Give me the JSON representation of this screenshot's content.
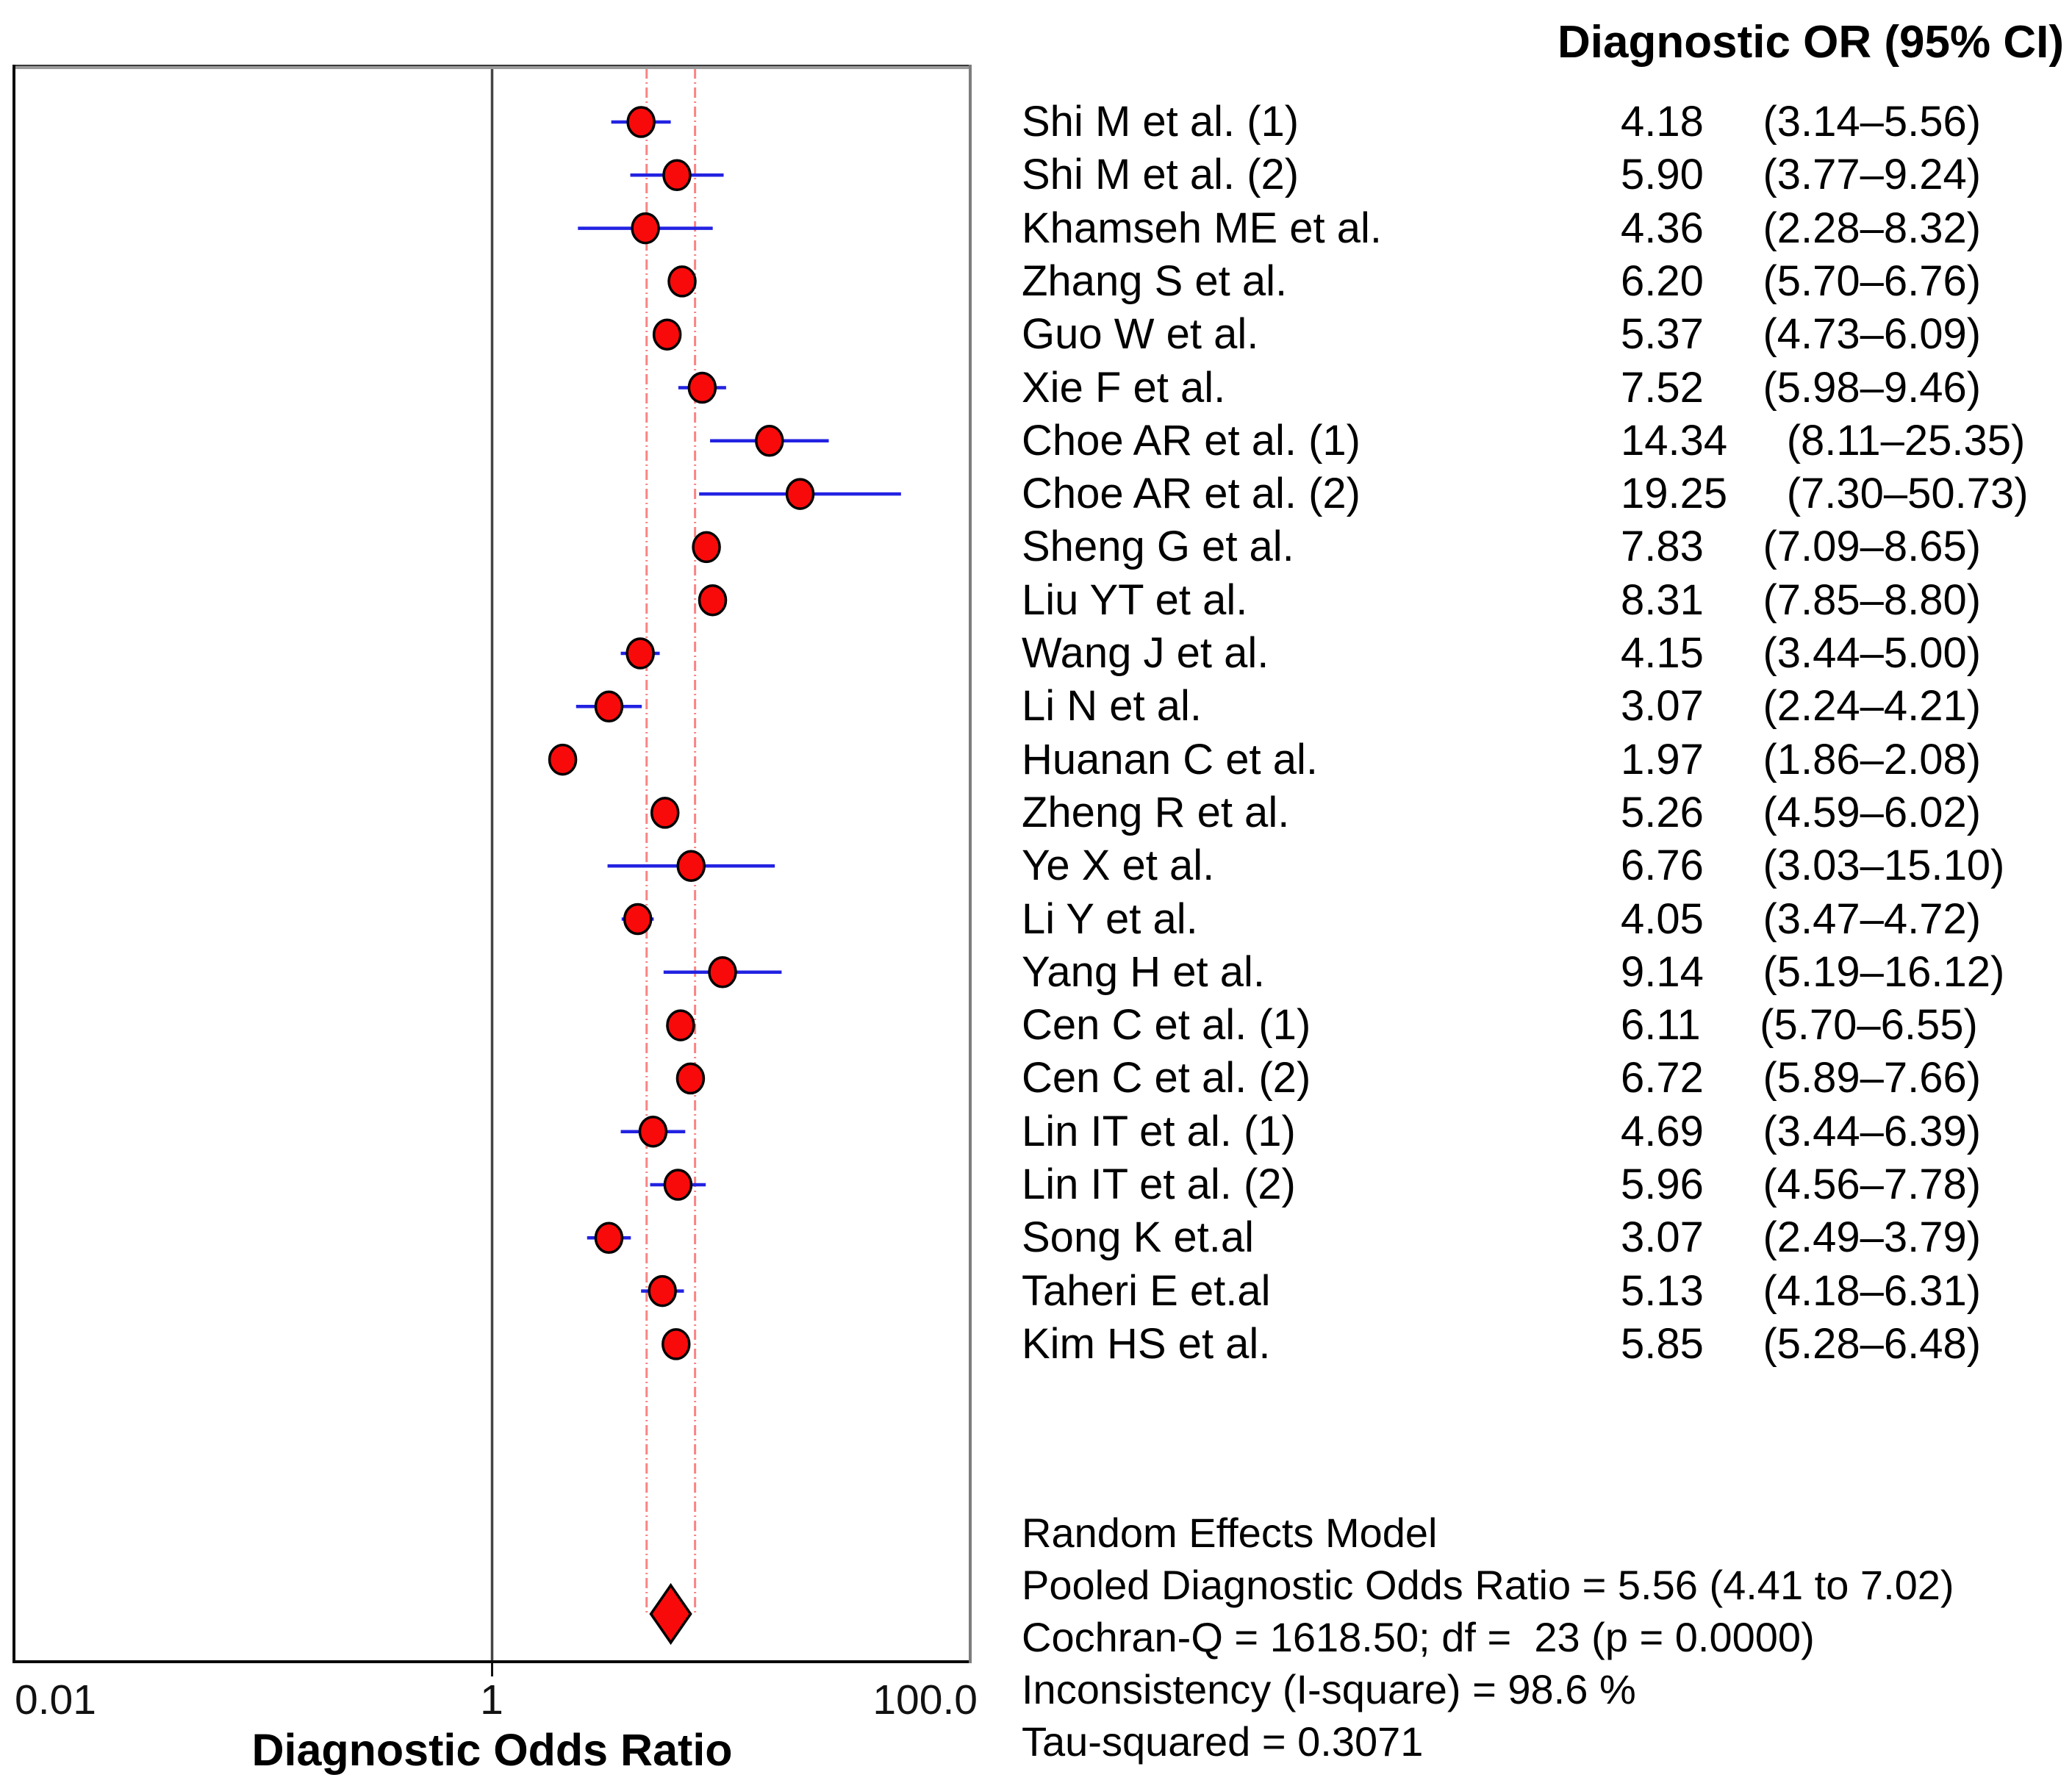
{
  "header": {
    "or_ci_label": "Diagnostic OR (95% CI)"
  },
  "chart_data": {
    "type": "forest",
    "x_scale": "log",
    "xlim": [
      0.01,
      100
    ],
    "x_ticks": [
      "0.01",
      "1",
      "100.0"
    ],
    "xlabel": "Diagnostic Odds Ratio",
    "null_line_value": 1,
    "grid": false,
    "studies": [
      {
        "label": "Shi M et al. (1)",
        "or": 4.18,
        "ci_low": 3.14,
        "ci_high": 5.56,
        "or_text": "4.18",
        "ci_text": "(3.14–5.56)"
      },
      {
        "label": "Shi M et al. (2)",
        "or": 5.9,
        "ci_low": 3.77,
        "ci_high": 9.24,
        "or_text": "5.90",
        "ci_text": "(3.77–9.24)"
      },
      {
        "label": "Khamseh ME et al.",
        "or": 4.36,
        "ci_low": 2.28,
        "ci_high": 8.32,
        "or_text": "4.36",
        "ci_text": "(2.28–8.32)"
      },
      {
        "label": "Zhang S et al.",
        "or": 6.2,
        "ci_low": 5.7,
        "ci_high": 6.76,
        "or_text": "6.20",
        "ci_text": "(5.70–6.76)"
      },
      {
        "label": "Guo W et al.",
        "or": 5.37,
        "ci_low": 4.73,
        "ci_high": 6.09,
        "or_text": "5.37",
        "ci_text": "(4.73–6.09)"
      },
      {
        "label": "Xie F et al.",
        "or": 7.52,
        "ci_low": 5.98,
        "ci_high": 9.46,
        "or_text": "7.52",
        "ci_text": "(5.98–9.46)"
      },
      {
        "label": "Choe AR et al. (1)",
        "or": 14.34,
        "ci_low": 8.11,
        "ci_high": 25.35,
        "or_text": "14.34",
        "ci_text": "(8.11–25.35)"
      },
      {
        "label": "Choe AR et al. (2)",
        "or": 19.25,
        "ci_low": 7.3,
        "ci_high": 50.73,
        "or_text": "19.25",
        "ci_text": "(7.30–50.73)"
      },
      {
        "label": "Sheng G et al.",
        "or": 7.83,
        "ci_low": 7.09,
        "ci_high": 8.65,
        "or_text": "7.83",
        "ci_text": "(7.09–8.65)"
      },
      {
        "label": "Liu YT et al.",
        "or": 8.31,
        "ci_low": 7.85,
        "ci_high": 8.8,
        "or_text": "8.31",
        "ci_text": "(7.85–8.80)"
      },
      {
        "label": "Wang J et al.",
        "or": 4.15,
        "ci_low": 3.44,
        "ci_high": 5.0,
        "or_text": "4.15",
        "ci_text": "(3.44–5.00)"
      },
      {
        "label": "Li N et al.",
        "or": 3.07,
        "ci_low": 2.24,
        "ci_high": 4.21,
        "or_text": "3.07",
        "ci_text": "(2.24–4.21)"
      },
      {
        "label": "Huanan C et al.",
        "or": 1.97,
        "ci_low": 1.86,
        "ci_high": 2.08,
        "or_text": "1.97",
        "ci_text": "(1.86–2.08)"
      },
      {
        "label": "Zheng R et al.",
        "or": 5.26,
        "ci_low": 4.59,
        "ci_high": 6.02,
        "or_text": "5.26",
        "ci_text": "(4.59–6.02)"
      },
      {
        "label": "Ye X et al.",
        "or": 6.76,
        "ci_low": 3.03,
        "ci_high": 15.1,
        "or_text": "6.76",
        "ci_text": "(3.03–15.10)"
      },
      {
        "label": "Li Y et al.",
        "or": 4.05,
        "ci_low": 3.47,
        "ci_high": 4.72,
        "or_text": "4.05",
        "ci_text": "(3.47–4.72)"
      },
      {
        "label": "Yang H et al.",
        "or": 9.14,
        "ci_low": 5.19,
        "ci_high": 16.12,
        "or_text": "9.14",
        "ci_text": "(5.19–16.12)"
      },
      {
        "label": "Cen C et al. (1)",
        "or": 6.11,
        "ci_low": 5.7,
        "ci_high": 6.55,
        "or_text": "6.11",
        "ci_text": "(5.70–6.55)"
      },
      {
        "label": "Cen C et al. (2)",
        "or": 6.72,
        "ci_low": 5.89,
        "ci_high": 7.66,
        "or_text": "6.72",
        "ci_text": "(5.89–7.66)"
      },
      {
        "label": "Lin IT et al. (1)",
        "or": 4.69,
        "ci_low": 3.44,
        "ci_high": 6.39,
        "or_text": "4.69",
        "ci_text": "(3.44–6.39)"
      },
      {
        "label": "Lin IT et al. (2)",
        "or": 5.96,
        "ci_low": 4.56,
        "ci_high": 7.78,
        "or_text": "5.96",
        "ci_text": "(4.56–7.78)"
      },
      {
        "label": "Song K et.al",
        "or": 3.07,
        "ci_low": 2.49,
        "ci_high": 3.79,
        "or_text": "3.07",
        "ci_text": "(2.49–3.79)"
      },
      {
        "label": "Taheri E et.al",
        "or": 5.13,
        "ci_low": 4.18,
        "ci_high": 6.31,
        "or_text": "5.13",
        "ci_text": "(4.18–6.31)"
      },
      {
        "label": "Kim HS et al.",
        "or": 5.85,
        "ci_low": 5.28,
        "ci_high": 6.48,
        "or_text": "5.85",
        "ci_text": "(5.28–6.48)"
      }
    ],
    "pooled": {
      "model": "Random Effects Model",
      "estimate": 5.56,
      "ci_low": 4.41,
      "ci_high": 7.02
    },
    "colors": {
      "marker_fill": "#f80a0a",
      "marker_outline": "#000000",
      "ci_line": "#2222e2",
      "pooled_guide": "#fa8484",
      "null_line": "#444444",
      "box_border_dark": "#0a0a0a",
      "box_border_light": "#9a9a9a"
    },
    "legend": null
  },
  "summary": {
    "lines": [
      "Random Effects Model",
      "Pooled Diagnostic Odds Ratio = 5.56 (4.41 to 7.02)",
      "Cochran-Q = 1618.50; df =  23 (p = 0.0000)",
      "Inconsistency (I-square) = 98.6 %",
      "Tau-squared = 0.3071"
    ]
  }
}
